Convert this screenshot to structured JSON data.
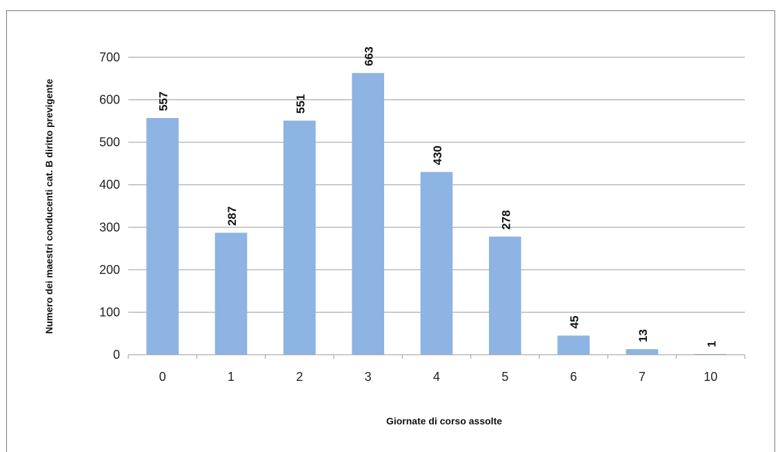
{
  "chart_data": {
    "type": "bar",
    "title": "",
    "xlabel": "Giornate di corso assolte",
    "ylabel": "Numero dei maestri conducenti cat. B diritto previgente",
    "categories": [
      "0",
      "1",
      "2",
      "3",
      "4",
      "5",
      "6",
      "7",
      "10"
    ],
    "values": [
      557,
      287,
      551,
      663,
      430,
      278,
      45,
      13,
      1
    ],
    "data_labels": [
      "557",
      "287",
      "551",
      "663",
      "430",
      "278",
      "45",
      "13",
      "1"
    ],
    "ylim": [
      0,
      700
    ],
    "yticks": [
      0,
      100,
      200,
      300,
      400,
      500,
      600,
      700
    ],
    "grid": true,
    "legend": "none",
    "bar_color": "#8db4e2",
    "grid_color": "#9a9a9a"
  }
}
